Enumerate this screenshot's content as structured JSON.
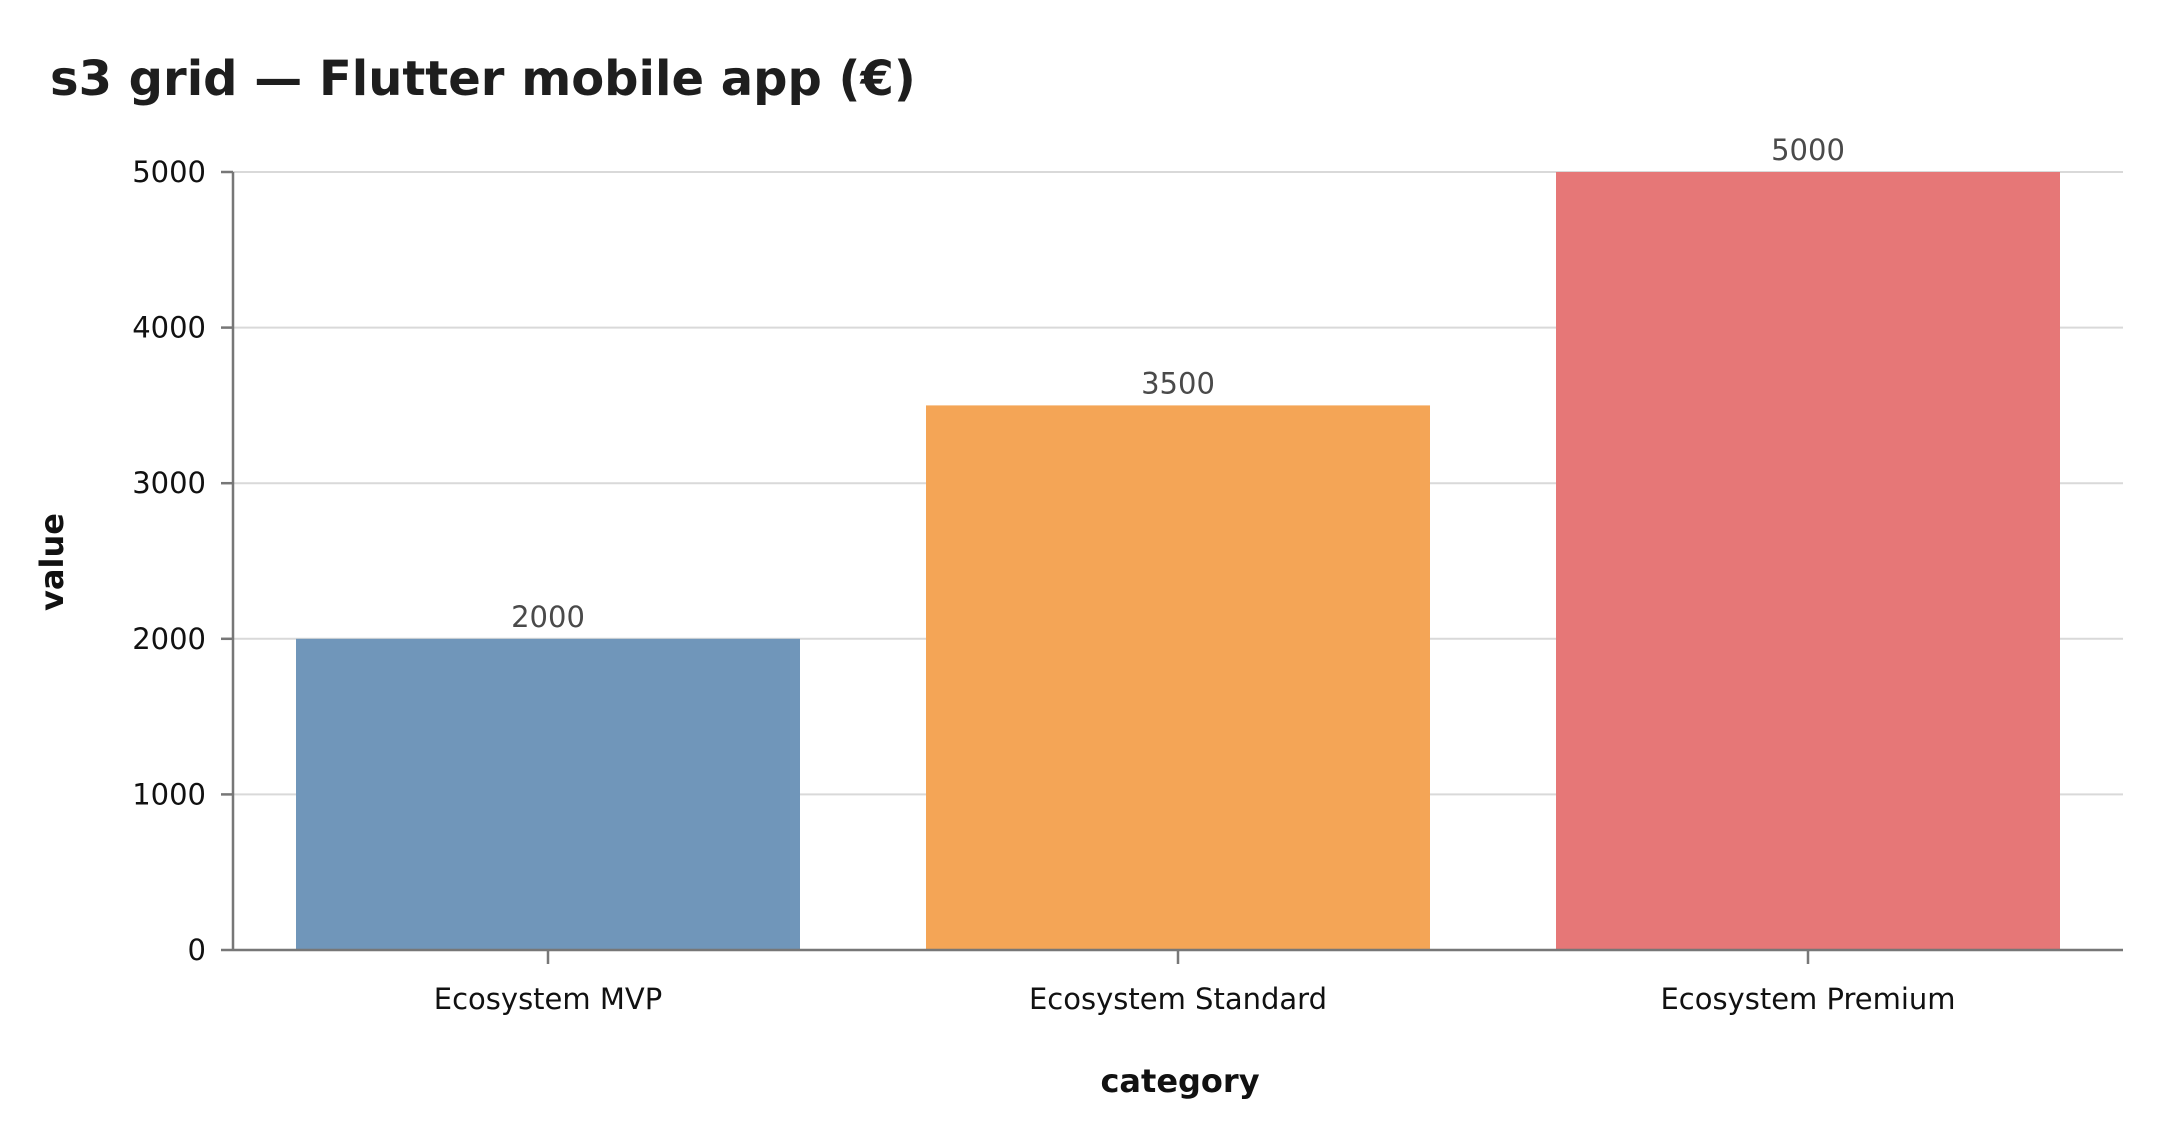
{
  "chart_data": {
    "type": "bar",
    "title": "s3 grid — Flutter mobile app (€)",
    "xlabel": "category",
    "ylabel": "value",
    "categories": [
      "Ecosystem MVP",
      "Ecosystem Standard",
      "Ecosystem Premium"
    ],
    "values": [
      2000,
      3500,
      5000
    ],
    "data_labels": [
      "2000",
      "3500",
      "5000"
    ],
    "colors": [
      "#7096ba",
      "#f4a556",
      "#e67777"
    ],
    "ylim": [
      0,
      5000
    ],
    "yticks": [
      0,
      1000,
      2000,
      3000,
      4000,
      5000
    ],
    "grid": true,
    "grid_axis": "y",
    "legend": "none"
  }
}
